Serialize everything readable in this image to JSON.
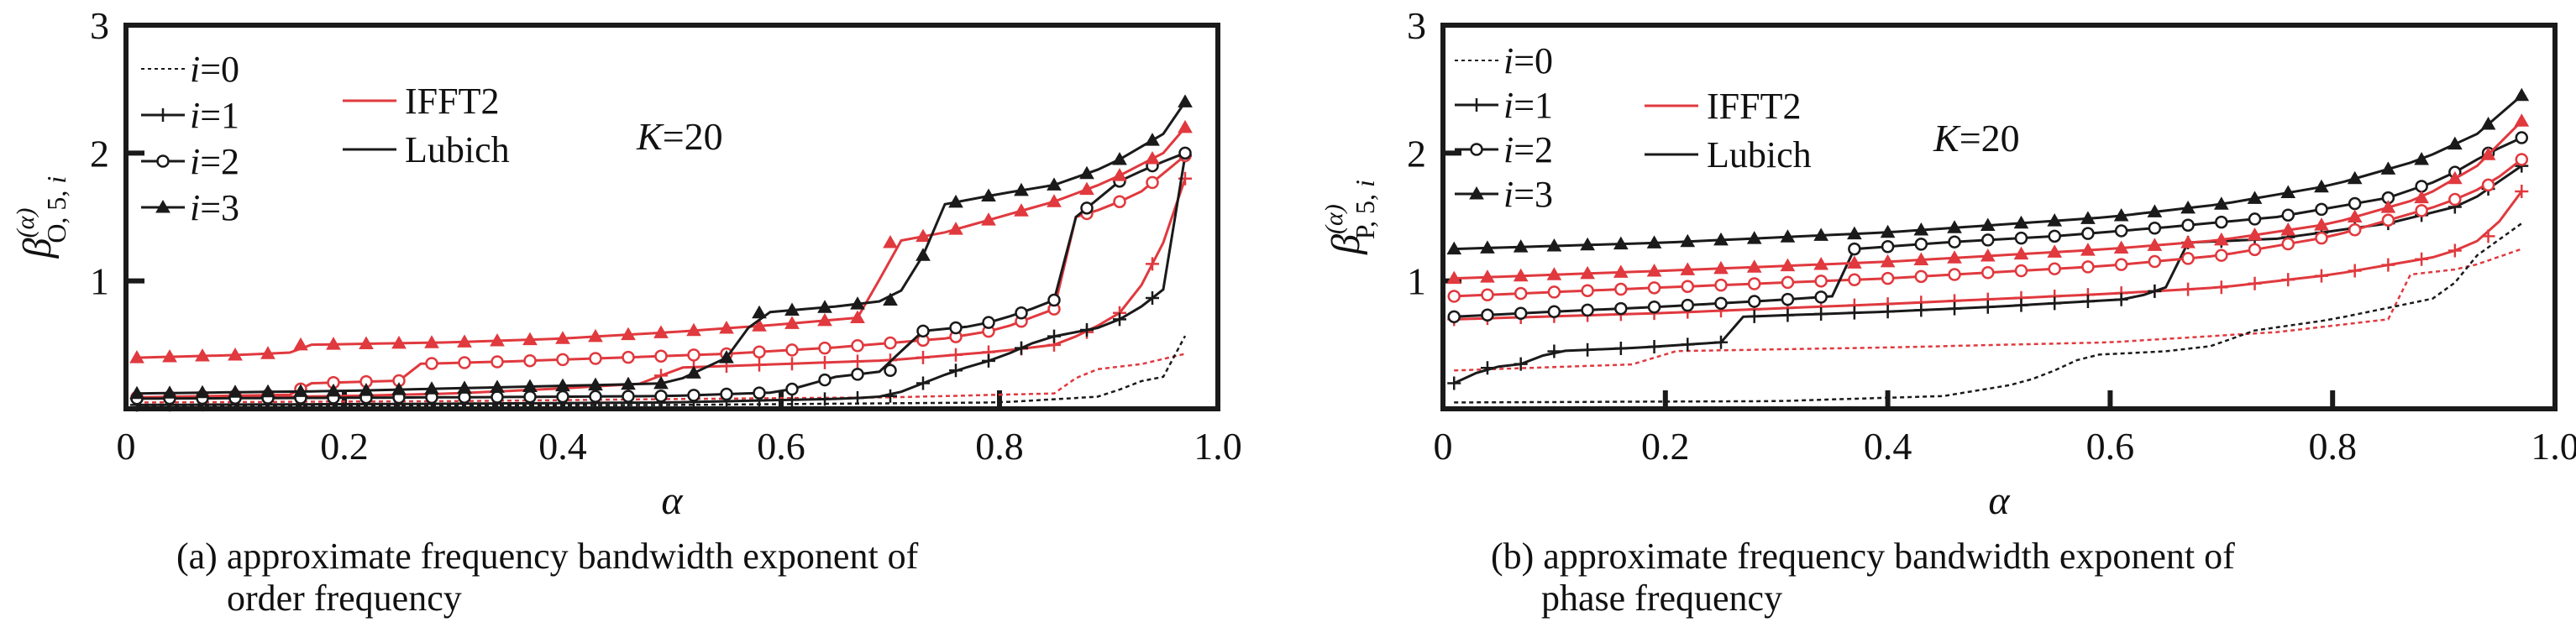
{
  "colors": {
    "ifft2": "#e0393e",
    "lubich": "#1a1a1a",
    "frame": "#1a1a1a"
  },
  "chart_data": [
    {
      "type": "line",
      "panel": "a",
      "caption_line1": "(a) approximate frequency bandwidth exponent of",
      "caption_line2": "order frequency",
      "xlabel": "α",
      "ylabel": {
        "base": "β",
        "sup": "(α)",
        "sub": "O, 5, ",
        "sub_i": "i"
      },
      "xlim": [
        0,
        1.0
      ],
      "ylim": [
        0,
        3
      ],
      "xticks": [
        0,
        0.2,
        0.4,
        0.6,
        0.8,
        1.0
      ],
      "xtick_labels": [
        "0",
        "0.2",
        "0.4",
        "0.6",
        "0.8",
        "1.0"
      ],
      "yticks": [
        1,
        2,
        3
      ],
      "ytick_labels": [
        "1",
        "2",
        "3"
      ],
      "annotation": {
        "k": "K",
        "eq": "=20"
      },
      "legend_i": [
        {
          "i": "i",
          "eq": "=0",
          "marker": "none",
          "dash": "dot"
        },
        {
          "i": "i",
          "eq": "=1",
          "marker": "plus",
          "dash": "solid"
        },
        {
          "i": "i",
          "eq": "=2",
          "marker": "circle",
          "dash": "solid"
        },
        {
          "i": "i",
          "eq": "=3",
          "marker": "triangle",
          "dash": "solid"
        }
      ],
      "legend_method": [
        {
          "label": "IFFT2",
          "color": "#e0393e"
        },
        {
          "label": "Lubich",
          "color": "#1a1a1a"
        }
      ],
      "series": [
        {
          "method": "IFFT2",
          "i": 0,
          "marker": "none",
          "dash": "dot",
          "points": [
            [
              0.01,
              0.05
            ],
            [
              0.3,
              0.06
            ],
            [
              0.55,
              0.08
            ],
            [
              0.7,
              0.09
            ],
            [
              0.85,
              0.12
            ],
            [
              0.88,
              0.3
            ],
            [
              0.93,
              0.35
            ],
            [
              0.97,
              0.43
            ]
          ]
        },
        {
          "method": "Lubich",
          "i": 0,
          "marker": "none",
          "dash": "dot",
          "points": [
            [
              0.01,
              0.02
            ],
            [
              0.5,
              0.03
            ],
            [
              0.8,
              0.05
            ],
            [
              0.9,
              0.1
            ],
            [
              0.92,
              0.2
            ],
            [
              0.95,
              0.25
            ],
            [
              0.97,
              0.57
            ]
          ]
        },
        {
          "method": "IFFT2",
          "i": 1,
          "marker": "plus",
          "dash": "solid",
          "points": [
            [
              0.01,
              0.08
            ],
            [
              0.2,
              0.1
            ],
            [
              0.3,
              0.12
            ],
            [
              0.4,
              0.16
            ],
            [
              0.48,
              0.2
            ],
            [
              0.5,
              0.32
            ],
            [
              0.6,
              0.35
            ],
            [
              0.7,
              0.38
            ],
            [
              0.8,
              0.45
            ],
            [
              0.85,
              0.5
            ],
            [
              0.88,
              0.6
            ],
            [
              0.92,
              0.8
            ],
            [
              0.95,
              1.3
            ],
            [
              0.97,
              1.8
            ]
          ]
        },
        {
          "method": "Lubich",
          "i": 1,
          "marker": "plus",
          "dash": "solid",
          "points": [
            [
              0.01,
              0.03
            ],
            [
              0.3,
              0.04
            ],
            [
              0.5,
              0.05
            ],
            [
              0.66,
              0.08
            ],
            [
              0.7,
              0.1
            ],
            [
              0.73,
              0.2
            ],
            [
              0.76,
              0.3
            ],
            [
              0.8,
              0.4
            ],
            [
              0.84,
              0.55
            ],
            [
              0.87,
              0.6
            ],
            [
              0.9,
              0.65
            ],
            [
              0.93,
              0.8
            ],
            [
              0.96,
              1.0
            ],
            [
              0.97,
              1.98
            ]
          ]
        },
        {
          "method": "IFFT2",
          "i": 2,
          "marker": "circle",
          "dash": "solid",
          "points": [
            [
              0.01,
              0.09
            ],
            [
              0.15,
              0.11
            ],
            [
              0.17,
              0.2
            ],
            [
              0.25,
              0.22
            ],
            [
              0.26,
              0.35
            ],
            [
              0.35,
              0.37
            ],
            [
              0.45,
              0.4
            ],
            [
              0.55,
              0.43
            ],
            [
              0.65,
              0.48
            ],
            [
              0.75,
              0.55
            ],
            [
              0.8,
              0.62
            ],
            [
              0.85,
              0.78
            ],
            [
              0.87,
              1.5
            ],
            [
              0.9,
              1.58
            ],
            [
              0.93,
              1.7
            ],
            [
              0.97,
              1.98
            ]
          ]
        },
        {
          "method": "Lubich",
          "i": 2,
          "marker": "circle",
          "dash": "solid",
          "points": [
            [
              0.01,
              0.08
            ],
            [
              0.3,
              0.09
            ],
            [
              0.5,
              0.1
            ],
            [
              0.6,
              0.13
            ],
            [
              0.65,
              0.25
            ],
            [
              0.7,
              0.3
            ],
            [
              0.72,
              0.6
            ],
            [
              0.78,
              0.65
            ],
            [
              0.82,
              0.75
            ],
            [
              0.85,
              0.85
            ],
            [
              0.87,
              1.5
            ],
            [
              0.91,
              1.78
            ],
            [
              0.94,
              1.9
            ],
            [
              0.97,
              2.0
            ]
          ]
        },
        {
          "method": "IFFT2",
          "i": 3,
          "marker": "triangle",
          "dash": "solid",
          "points": [
            [
              0.01,
              0.4
            ],
            [
              0.1,
              0.42
            ],
            [
              0.15,
              0.44
            ],
            [
              0.16,
              0.5
            ],
            [
              0.3,
              0.52
            ],
            [
              0.4,
              0.55
            ],
            [
              0.5,
              0.6
            ],
            [
              0.6,
              0.66
            ],
            [
              0.68,
              0.72
            ],
            [
              0.7,
              1.3
            ],
            [
              0.75,
              1.38
            ],
            [
              0.8,
              1.5
            ],
            [
              0.85,
              1.62
            ],
            [
              0.9,
              1.78
            ],
            [
              0.95,
              2.0
            ],
            [
              0.97,
              2.2
            ]
          ]
        },
        {
          "method": "Lubich",
          "i": 3,
          "marker": "triangle",
          "dash": "solid",
          "points": [
            [
              0.01,
              0.12
            ],
            [
              0.2,
              0.14
            ],
            [
              0.4,
              0.18
            ],
            [
              0.5,
              0.2
            ],
            [
              0.55,
              0.4
            ],
            [
              0.58,
              0.75
            ],
            [
              0.65,
              0.8
            ],
            [
              0.7,
              0.85
            ],
            [
              0.72,
              1.0
            ],
            [
              0.75,
              1.6
            ],
            [
              0.8,
              1.68
            ],
            [
              0.85,
              1.75
            ],
            [
              0.9,
              1.9
            ],
            [
              0.95,
              2.15
            ],
            [
              0.97,
              2.4
            ]
          ]
        }
      ]
    },
    {
      "type": "line",
      "panel": "b",
      "caption_line1": "(b) approximate frequency bandwidth exponent of",
      "caption_line2": "phase frequency",
      "xlabel": "α",
      "ylabel": {
        "base": "β",
        "sup": "(α)",
        "sub": "P, 5, ",
        "sub_i": "i"
      },
      "xlim": [
        0,
        1.0
      ],
      "ylim": [
        0,
        3
      ],
      "xticks": [
        0,
        0.2,
        0.4,
        0.6,
        0.8,
        1.0
      ],
      "xtick_labels": [
        "0",
        "0.2",
        "0.4",
        "0.6",
        "0.8",
        "1.0"
      ],
      "yticks": [
        1,
        2,
        3
      ],
      "ytick_labels": [
        "1",
        "2",
        "3"
      ],
      "annotation": {
        "k": "K",
        "eq": "=20"
      },
      "legend_i": [
        {
          "i": "i",
          "eq": "=0",
          "marker": "none",
          "dash": "dot"
        },
        {
          "i": "i",
          "eq": "=1",
          "marker": "plus",
          "dash": "solid"
        },
        {
          "i": "i",
          "eq": "=2",
          "marker": "circle",
          "dash": "solid"
        },
        {
          "i": "i",
          "eq": "=3",
          "marker": "triangle",
          "dash": "solid"
        }
      ],
      "legend_method": [
        {
          "label": "IFFT2",
          "color": "#e0393e"
        },
        {
          "label": "Lubich",
          "color": "#1a1a1a"
        }
      ],
      "series": [
        {
          "method": "IFFT2",
          "i": 0,
          "marker": "none",
          "dash": "dot",
          "points": [
            [
              0.01,
              0.3
            ],
            [
              0.18,
              0.35
            ],
            [
              0.2,
              0.45
            ],
            [
              0.4,
              0.48
            ],
            [
              0.6,
              0.52
            ],
            [
              0.75,
              0.6
            ],
            [
              0.85,
              0.7
            ],
            [
              0.87,
              1.05
            ],
            [
              0.92,
              1.1
            ],
            [
              0.97,
              1.25
            ]
          ]
        },
        {
          "method": "Lubich",
          "i": 0,
          "marker": "none",
          "dash": "dot",
          "points": [
            [
              0.01,
              0.05
            ],
            [
              0.3,
              0.06
            ],
            [
              0.45,
              0.1
            ],
            [
              0.52,
              0.2
            ],
            [
              0.55,
              0.3
            ],
            [
              0.58,
              0.42
            ],
            [
              0.65,
              0.45
            ],
            [
              0.7,
              0.5
            ],
            [
              0.72,
              0.6
            ],
            [
              0.8,
              0.7
            ],
            [
              0.9,
              0.88
            ],
            [
              0.93,
              1.2
            ],
            [
              0.97,
              1.45
            ]
          ]
        },
        {
          "method": "IFFT2",
          "i": 1,
          "marker": "plus",
          "dash": "solid",
          "points": [
            [
              0.01,
              0.7
            ],
            [
              0.2,
              0.75
            ],
            [
              0.4,
              0.82
            ],
            [
              0.6,
              0.9
            ],
            [
              0.7,
              0.95
            ],
            [
              0.8,
              1.05
            ],
            [
              0.9,
              1.2
            ],
            [
              0.94,
              1.35
            ],
            [
              0.97,
              1.7
            ]
          ]
        },
        {
          "method": "Lubich",
          "i": 1,
          "marker": "plus",
          "dash": "solid",
          "points": [
            [
              0.01,
              0.2
            ],
            [
              0.04,
              0.32
            ],
            [
              0.07,
              0.35
            ],
            [
              0.1,
              0.45
            ],
            [
              0.18,
              0.48
            ],
            [
              0.25,
              0.52
            ],
            [
              0.27,
              0.72
            ],
            [
              0.4,
              0.76
            ],
            [
              0.5,
              0.8
            ],
            [
              0.62,
              0.86
            ],
            [
              0.65,
              0.95
            ],
            [
              0.67,
              1.3
            ],
            [
              0.75,
              1.33
            ],
            [
              0.85,
              1.45
            ],
            [
              0.92,
              1.6
            ],
            [
              0.97,
              1.9
            ]
          ]
        },
        {
          "method": "IFFT2",
          "i": 2,
          "marker": "circle",
          "dash": "solid",
          "points": [
            [
              0.01,
              0.88
            ],
            [
              0.2,
              0.95
            ],
            [
              0.4,
              1.02
            ],
            [
              0.6,
              1.12
            ],
            [
              0.7,
              1.2
            ],
            [
              0.8,
              1.35
            ],
            [
              0.9,
              1.6
            ],
            [
              0.94,
              1.75
            ],
            [
              0.97,
              1.95
            ]
          ]
        },
        {
          "method": "Lubich",
          "i": 2,
          "marker": "circle",
          "dash": "solid",
          "points": [
            [
              0.01,
              0.72
            ],
            [
              0.1,
              0.76
            ],
            [
              0.2,
              0.8
            ],
            [
              0.3,
              0.85
            ],
            [
              0.35,
              0.88
            ],
            [
              0.37,
              1.25
            ],
            [
              0.45,
              1.3
            ],
            [
              0.55,
              1.35
            ],
            [
              0.65,
              1.42
            ],
            [
              0.75,
              1.5
            ],
            [
              0.85,
              1.65
            ],
            [
              0.9,
              1.8
            ],
            [
              0.94,
              2.0
            ],
            [
              0.97,
              2.12
            ]
          ]
        },
        {
          "method": "IFFT2",
          "i": 3,
          "marker": "triangle",
          "dash": "solid",
          "points": [
            [
              0.01,
              1.02
            ],
            [
              0.2,
              1.08
            ],
            [
              0.4,
              1.15
            ],
            [
              0.6,
              1.25
            ],
            [
              0.7,
              1.32
            ],
            [
              0.8,
              1.45
            ],
            [
              0.88,
              1.65
            ],
            [
              0.93,
              1.9
            ],
            [
              0.97,
              2.25
            ]
          ]
        },
        {
          "method": "Lubich",
          "i": 3,
          "marker": "triangle",
          "dash": "solid",
          "points": [
            [
              0.01,
              1.25
            ],
            [
              0.2,
              1.3
            ],
            [
              0.4,
              1.38
            ],
            [
              0.6,
              1.5
            ],
            [
              0.7,
              1.6
            ],
            [
              0.8,
              1.75
            ],
            [
              0.88,
              1.95
            ],
            [
              0.93,
              2.15
            ],
            [
              0.97,
              2.45
            ]
          ]
        }
      ]
    }
  ]
}
